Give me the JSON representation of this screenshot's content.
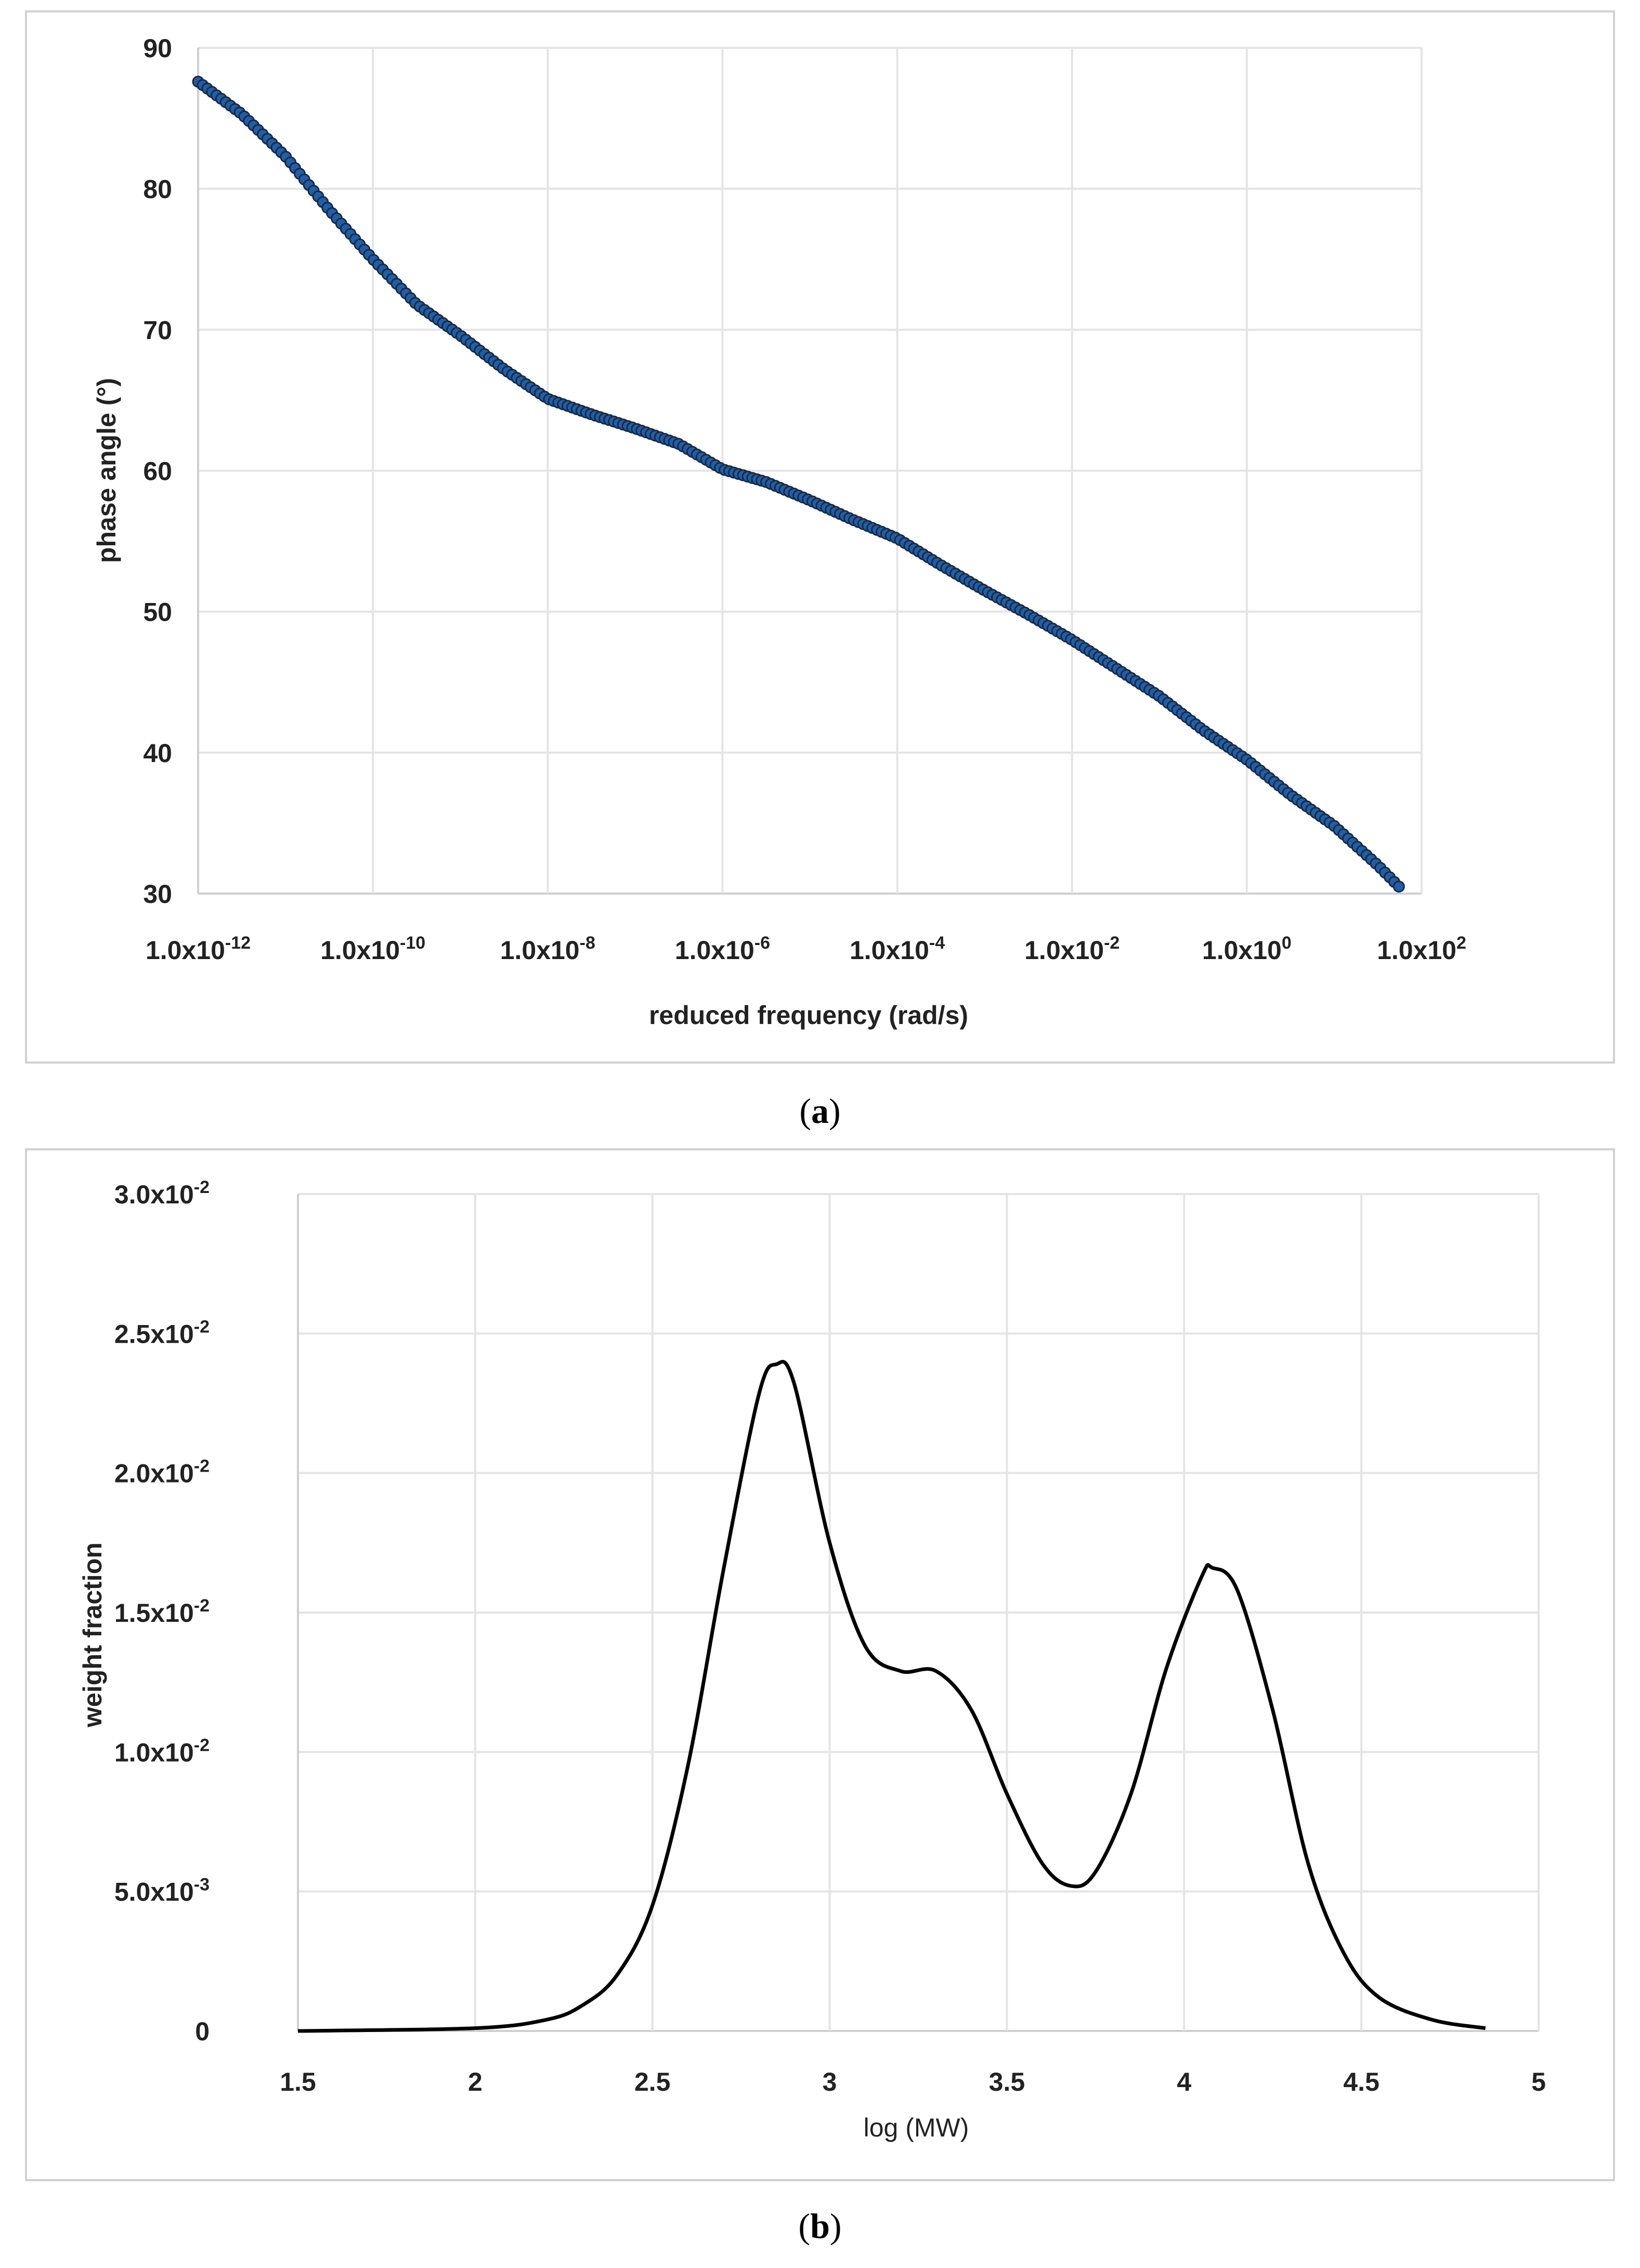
{
  "chart_data": [
    {
      "type": "scatter",
      "caption_label": "a",
      "xlabel": "reduced frequency (rad/s)",
      "ylabel": "phase angle (°)",
      "xscale": "log",
      "xlim_log10": [
        -12,
        2
      ],
      "ylim": [
        30,
        90
      ],
      "xticks": [
        {
          "base": "1.0x10",
          "exp": "-12"
        },
        {
          "base": "1.0x10",
          "exp": "-10"
        },
        {
          "base": "1.0x10",
          "exp": "-8"
        },
        {
          "base": "1.0x10",
          "exp": "-6"
        },
        {
          "base": "1.0x10",
          "exp": "-4"
        },
        {
          "base": "1.0x10",
          "exp": "-2"
        },
        {
          "base": "1.0x10",
          "exp": "0"
        },
        {
          "base": "1.0x10",
          "exp": "2"
        }
      ],
      "yticks": [
        "30",
        "40",
        "50",
        "60",
        "70",
        "80",
        "90"
      ],
      "grid": true,
      "marker_color": "#1f5fa8",
      "marker_edge": "#1a2a44",
      "series": [
        {
          "name": "phase angle",
          "log10_x": [
            -12,
            -11.5,
            -11,
            -10.5,
            -10,
            -9.5,
            -9,
            -8.5,
            -8,
            -7.5,
            -7,
            -6.5,
            -6,
            -5.5,
            -5,
            -4.5,
            -4,
            -3.5,
            -3,
            -2.5,
            -2,
            -1.5,
            -1,
            -0.5,
            0,
            0.5,
            1,
            1.5,
            1.74
          ],
          "y": [
            87.6,
            85.3,
            82.3,
            78.5,
            75,
            71.8,
            69.6,
            67.2,
            65.1,
            64,
            63,
            61.9,
            60.1,
            59.2,
            57.9,
            56.5,
            55.2,
            53.3,
            51.5,
            49.8,
            48,
            46,
            44,
            41.6,
            39.5,
            37,
            34.8,
            32,
            30.5
          ]
        }
      ]
    },
    {
      "type": "line",
      "caption_label": "b",
      "xlabel": "log (MW)",
      "ylabel": "weight fraction",
      "xlim": [
        1.5,
        5
      ],
      "ylim": [
        0,
        0.03
      ],
      "xticks": [
        "1.5",
        "2",
        "2.5",
        "3",
        "3.5",
        "4",
        "4.5",
        "5"
      ],
      "yticks": [
        {
          "base": "0",
          "exp": ""
        },
        {
          "base": "5.0x10",
          "exp": "-3"
        },
        {
          "base": "1.0x10",
          "exp": "-2"
        },
        {
          "base": "1.5x10",
          "exp": "-2"
        },
        {
          "base": "2.0x10",
          "exp": "-2"
        },
        {
          "base": "2.5x10",
          "exp": "-2"
        },
        {
          "base": "3.0x10",
          "exp": "-2"
        }
      ],
      "grid": true,
      "line_color": "#000000",
      "series": [
        {
          "name": "weight fraction",
          "x": [
            1.5,
            2.0,
            2.2,
            2.3,
            2.4,
            2.5,
            2.6,
            2.7,
            2.8,
            2.85,
            2.9,
            3.0,
            3.1,
            3.2,
            3.3,
            3.4,
            3.5,
            3.6,
            3.68,
            3.75,
            3.85,
            3.95,
            4.05,
            4.08,
            4.15,
            4.25,
            4.35,
            4.45,
            4.55,
            4.7,
            4.85
          ],
          "y": [
            0,
            0.0001,
            0.0004,
            0.0009,
            0.002,
            0.0045,
            0.0095,
            0.0165,
            0.0228,
            0.0239,
            0.0232,
            0.0175,
            0.0138,
            0.0129,
            0.0129,
            0.0115,
            0.0085,
            0.006,
            0.0052,
            0.0057,
            0.0085,
            0.013,
            0.0163,
            0.0166,
            0.0158,
            0.0115,
            0.006,
            0.0028,
            0.0012,
            0.0004,
            0.0001
          ]
        }
      ]
    }
  ]
}
